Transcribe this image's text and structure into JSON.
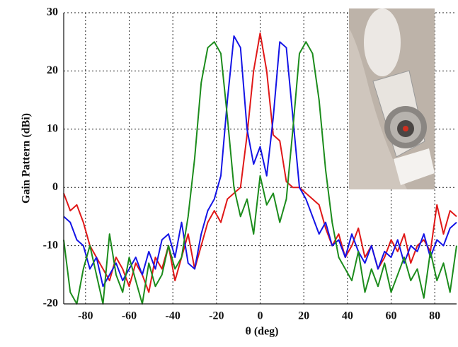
{
  "chart_data": {
    "type": "line",
    "x_label": "θ (deg)",
    "y_label": "Gain Pattern (dBi)",
    "xlim": [
      -90,
      90
    ],
    "ylim": [
      -20,
      30
    ],
    "xticks": [
      -80,
      -60,
      -40,
      -20,
      0,
      20,
      40,
      60,
      80
    ],
    "yticks": [
      -20,
      -10,
      0,
      10,
      20,
      30
    ],
    "grid": true,
    "x": [
      -90,
      -87,
      -84,
      -81,
      -78,
      -75,
      -72,
      -69,
      -66,
      -63,
      -60,
      -57,
      -54,
      -51,
      -48,
      -45,
      -42,
      -39,
      -36,
      -33,
      -30,
      -27,
      -24,
      -21,
      -18,
      -15,
      -12,
      -9,
      -6,
      -3,
      0,
      3,
      6,
      9,
      12,
      15,
      18,
      21,
      24,
      27,
      30,
      33,
      36,
      39,
      42,
      45,
      48,
      51,
      54,
      57,
      60,
      63,
      66,
      69,
      72,
      75,
      78,
      81,
      84,
      87,
      90
    ],
    "series": [
      {
        "color": "#e01818",
        "values": [
          -1,
          -4,
          -3,
          -6,
          -10,
          -12,
          -14,
          -16,
          -12,
          -14,
          -17,
          -13,
          -15,
          -18,
          -12,
          -14,
          -10,
          -16,
          -12,
          -8,
          -14,
          -10,
          -6,
          -4,
          -6,
          -2,
          -1,
          0,
          9,
          20,
          26.5,
          20,
          9,
          8,
          1,
          0,
          0,
          -1,
          -2,
          -3,
          -7,
          -10,
          -8,
          -12,
          -10,
          -7,
          -12,
          -10,
          -14,
          -12,
          -9,
          -11,
          -8,
          -13,
          -10,
          -9,
          -11,
          -3,
          -8,
          -4,
          -5
        ]
      },
      {
        "color": "#1414e6",
        "values": [
          -5,
          -6,
          -9,
          -10,
          -14,
          -12,
          -17,
          -15,
          -13,
          -16,
          -14,
          -12,
          -15,
          -11,
          -14,
          -9,
          -8,
          -12,
          -6,
          -13,
          -14,
          -8,
          -4,
          -2,
          2,
          15,
          26,
          24,
          10,
          4,
          7,
          2,
          12,
          25,
          24,
          12,
          0,
          -2,
          -5,
          -8,
          -6,
          -10,
          -9,
          -12,
          -8,
          -11,
          -13,
          -10,
          -14,
          -11,
          -12,
          -9,
          -13,
          -10,
          -11,
          -8,
          -12,
          -9,
          -10,
          -7,
          -6
        ]
      },
      {
        "color": "#1c8c1c",
        "values": [
          -9,
          -18,
          -20,
          -14,
          -10,
          -15,
          -20,
          -8,
          -15,
          -18,
          -12,
          -16,
          -20,
          -13,
          -17,
          -15,
          -10,
          -14,
          -12,
          -5,
          5,
          18,
          24,
          25,
          23,
          12,
          0,
          -5,
          -2,
          -8,
          2,
          -3,
          -1,
          -6,
          -2,
          10,
          23,
          25,
          23,
          15,
          3,
          -6,
          -12,
          -14,
          -16,
          -11,
          -18,
          -14,
          -17,
          -13,
          -18,
          -15,
          -12,
          -16,
          -14,
          -19,
          -11,
          -16,
          -13,
          -18,
          -10
        ]
      }
    ]
  }
}
